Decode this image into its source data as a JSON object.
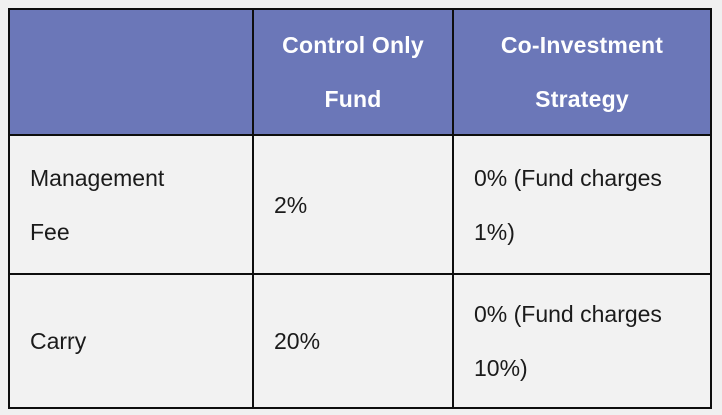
{
  "colors": {
    "header_bg": "#6b77b8",
    "header_text": "#ffffff",
    "cell_bg": "#f2f2f2",
    "border": "#0e0e0e",
    "body_text": "#1b1b1b",
    "page_bg": "#f0f0f0"
  },
  "table": {
    "columns": [
      {
        "label": ""
      },
      {
        "label": "Control Only\nFund"
      },
      {
        "label": "Co-Investment\nStrategy"
      }
    ],
    "rows": [
      {
        "label": "Management\nFee",
        "values": [
          "2%",
          "0% (Fund charges\n1%)"
        ]
      },
      {
        "label": "Carry",
        "values": [
          "20%",
          "0% (Fund charges\n10%)"
        ]
      }
    ]
  }
}
